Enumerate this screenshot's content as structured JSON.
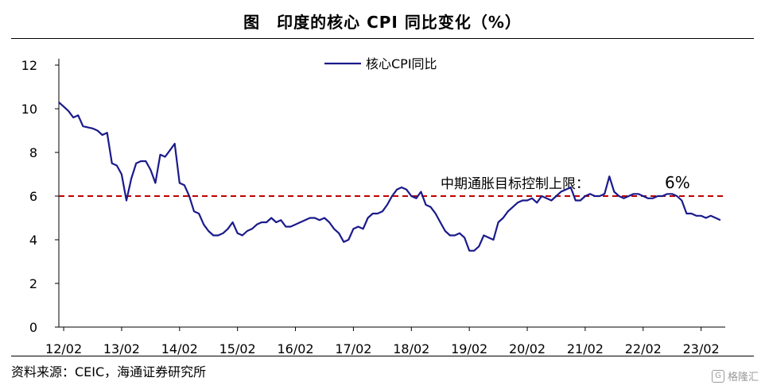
{
  "title": "图　印度的核心 CPI 同比变化（%）",
  "source": "资料来源：CEIC，海通证券研究所",
  "watermark": {
    "text": "格隆汇",
    "icon": "G"
  },
  "colors": {
    "series": "#1a1a8c",
    "reference_line": "#c00000",
    "axis": "#000000"
  },
  "chart_data": {
    "type": "line",
    "title": "印度的核心 CPI 同比变化（%）",
    "xlabel": "",
    "ylabel": "",
    "ylim": [
      0,
      12
    ],
    "yticks": [
      0,
      2,
      4,
      6,
      8,
      10,
      12
    ],
    "x_tick_labels": [
      "12/02",
      "13/02",
      "14/02",
      "15/02",
      "16/02",
      "17/02",
      "18/02",
      "19/02",
      "20/02",
      "21/02",
      "22/02",
      "23/02"
    ],
    "x_tick_dates": [
      "2012-02",
      "2013-02",
      "2014-02",
      "2015-02",
      "2016-02",
      "2017-02",
      "2018-02",
      "2019-02",
      "2020-02",
      "2021-02",
      "2022-02",
      "2023-02"
    ],
    "grid": false,
    "legend_position": "top-center",
    "series": [
      {
        "name": "核心CPI同比",
        "x": [
          "2012-01",
          "2012-02",
          "2012-03",
          "2012-04",
          "2012-05",
          "2012-06",
          "2012-07",
          "2012-08",
          "2012-09",
          "2012-10",
          "2012-11",
          "2012-12",
          "2013-01",
          "2013-02",
          "2013-03",
          "2013-04",
          "2013-05",
          "2013-06",
          "2013-07",
          "2013-08",
          "2013-09",
          "2013-10",
          "2013-11",
          "2013-12",
          "2014-01",
          "2014-02",
          "2014-03",
          "2014-04",
          "2014-05",
          "2014-06",
          "2014-07",
          "2014-08",
          "2014-09",
          "2014-10",
          "2014-11",
          "2014-12",
          "2015-01",
          "2015-02",
          "2015-03",
          "2015-04",
          "2015-05",
          "2015-06",
          "2015-07",
          "2015-08",
          "2015-09",
          "2015-10",
          "2015-11",
          "2015-12",
          "2016-01",
          "2016-02",
          "2016-03",
          "2016-04",
          "2016-05",
          "2016-06",
          "2016-07",
          "2016-08",
          "2016-09",
          "2016-10",
          "2016-11",
          "2016-12",
          "2017-01",
          "2017-02",
          "2017-03",
          "2017-04",
          "2017-05",
          "2017-06",
          "2017-07",
          "2017-08",
          "2017-09",
          "2017-10",
          "2017-11",
          "2017-12",
          "2018-01",
          "2018-02",
          "2018-03",
          "2018-04",
          "2018-05",
          "2018-06",
          "2018-07",
          "2018-08",
          "2018-09",
          "2018-10",
          "2018-11",
          "2018-12",
          "2019-01",
          "2019-02",
          "2019-03",
          "2019-04",
          "2019-05",
          "2019-06",
          "2019-07",
          "2019-08",
          "2019-09",
          "2019-10",
          "2019-11",
          "2019-12",
          "2020-01",
          "2020-02",
          "2020-03",
          "2020-04",
          "2020-05",
          "2020-06",
          "2020-07",
          "2020-08",
          "2020-09",
          "2020-10",
          "2020-11",
          "2020-12",
          "2021-01",
          "2021-02",
          "2021-03",
          "2021-04",
          "2021-05",
          "2021-06",
          "2021-07",
          "2021-08",
          "2021-09",
          "2021-10",
          "2021-11",
          "2021-12",
          "2022-01",
          "2022-02",
          "2022-03",
          "2022-04",
          "2022-05",
          "2022-06",
          "2022-07",
          "2022-08",
          "2022-09",
          "2022-10",
          "2022-11",
          "2022-12",
          "2023-01",
          "2023-02",
          "2023-03",
          "2023-04",
          "2023-05",
          "2023-06"
        ],
        "values": [
          10.3,
          10.1,
          9.9,
          9.6,
          9.7,
          9.2,
          9.15,
          9.1,
          9.0,
          8.8,
          8.9,
          7.5,
          7.4,
          7.0,
          5.8,
          6.8,
          7.5,
          7.6,
          7.6,
          7.2,
          6.6,
          7.9,
          7.8,
          8.1,
          8.4,
          6.6,
          6.5,
          6.0,
          5.3,
          5.2,
          4.7,
          4.4,
          4.2,
          4.2,
          4.3,
          4.5,
          4.8,
          4.3,
          4.2,
          4.4,
          4.5,
          4.7,
          4.8,
          4.8,
          5.0,
          4.8,
          4.9,
          4.6,
          4.6,
          4.7,
          4.8,
          4.9,
          5.0,
          5.0,
          4.9,
          5.0,
          4.8,
          4.5,
          4.3,
          3.9,
          4.0,
          4.5,
          4.6,
          4.5,
          5.0,
          5.2,
          5.2,
          5.3,
          5.6,
          6.0,
          6.3,
          6.4,
          6.3,
          6.0,
          5.9,
          6.2,
          5.6,
          5.5,
          5.2,
          4.8,
          4.4,
          4.2,
          4.2,
          4.3,
          4.1,
          3.5,
          3.5,
          3.7,
          4.2,
          4.1,
          4.0,
          4.8,
          5.0,
          5.3,
          5.5,
          5.7,
          5.8,
          5.8,
          5.9,
          5.7,
          6.0,
          5.9,
          5.8,
          6.0,
          6.2,
          6.3,
          6.4,
          5.8,
          5.8,
          6.0,
          6.1,
          6.0,
          6.0,
          6.1,
          6.9,
          6.2,
          6.0,
          5.9,
          6.0,
          6.1,
          6.1,
          6.0,
          5.9,
          5.9,
          6.0,
          6.0,
          6.1,
          6.1,
          6.0,
          5.8,
          5.2,
          5.2,
          5.1,
          5.1,
          5.0,
          5.1,
          5.0,
          4.9
        ]
      }
    ],
    "reference_line": {
      "y": 6,
      "label": "中期通胀目标控制上限：",
      "value_label": "6%",
      "style": "dashed"
    }
  }
}
